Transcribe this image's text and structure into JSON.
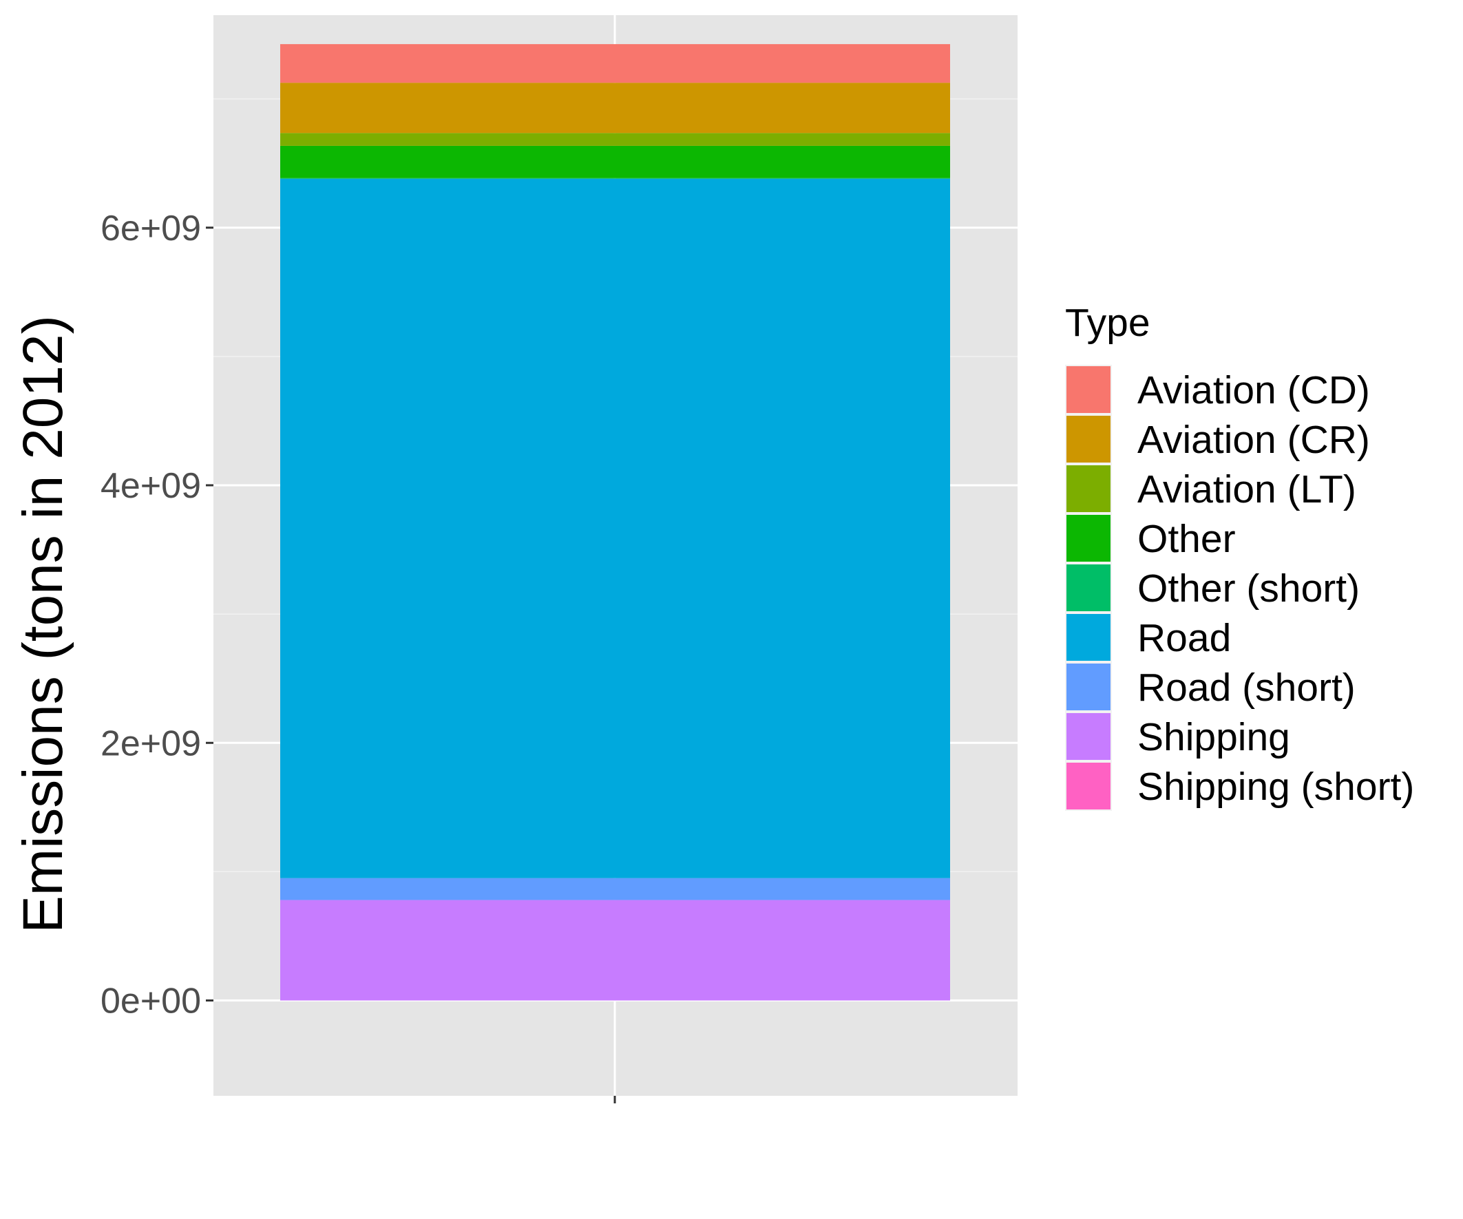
{
  "chart_data": {
    "type": "bar",
    "stacked": true,
    "categories": [
      ""
    ],
    "ylabel": "Emissions (tons in 2012)",
    "xlabel": "",
    "ylim": [
      -740000000.0,
      7650000000.0
    ],
    "y_ticks": [
      0,
      2000000000,
      4000000000,
      6000000000
    ],
    "y_tick_labels": [
      "0e+00",
      "2e+09",
      "4e+09",
      "6e+09"
    ],
    "grid": true,
    "legend_position": "right",
    "legend_title": "Type",
    "series": [
      {
        "name": "Aviation (CD)",
        "color": "#F8766D",
        "values": [
          300000000
        ]
      },
      {
        "name": "Aviation (CR)",
        "color": "#CD9600",
        "values": [
          390000000
        ]
      },
      {
        "name": "Aviation (LT)",
        "color": "#7CAE00",
        "values": [
          100000000
        ]
      },
      {
        "name": "Other",
        "color": "#0CB702",
        "values": [
          250000000
        ]
      },
      {
        "name": "Other (short)",
        "color": "#00BE67",
        "values": [
          5000000
        ]
      },
      {
        "name": "Road",
        "color": "#00A9DD",
        "values": [
          5430000000
        ]
      },
      {
        "name": "Road (short)",
        "color": "#619CFF",
        "values": [
          170000000
        ]
      },
      {
        "name": "Shipping",
        "color": "#C77CFF",
        "values": [
          780000000
        ]
      },
      {
        "name": "Shipping (short)",
        "color": "#FF61C3",
        "values": [
          0
        ]
      }
    ]
  },
  "colors": {
    "panel_background": "#E5E5E5",
    "grid_major": "#FFFFFF",
    "grid_minor": "#F2F2F2",
    "tick": "#333333"
  }
}
